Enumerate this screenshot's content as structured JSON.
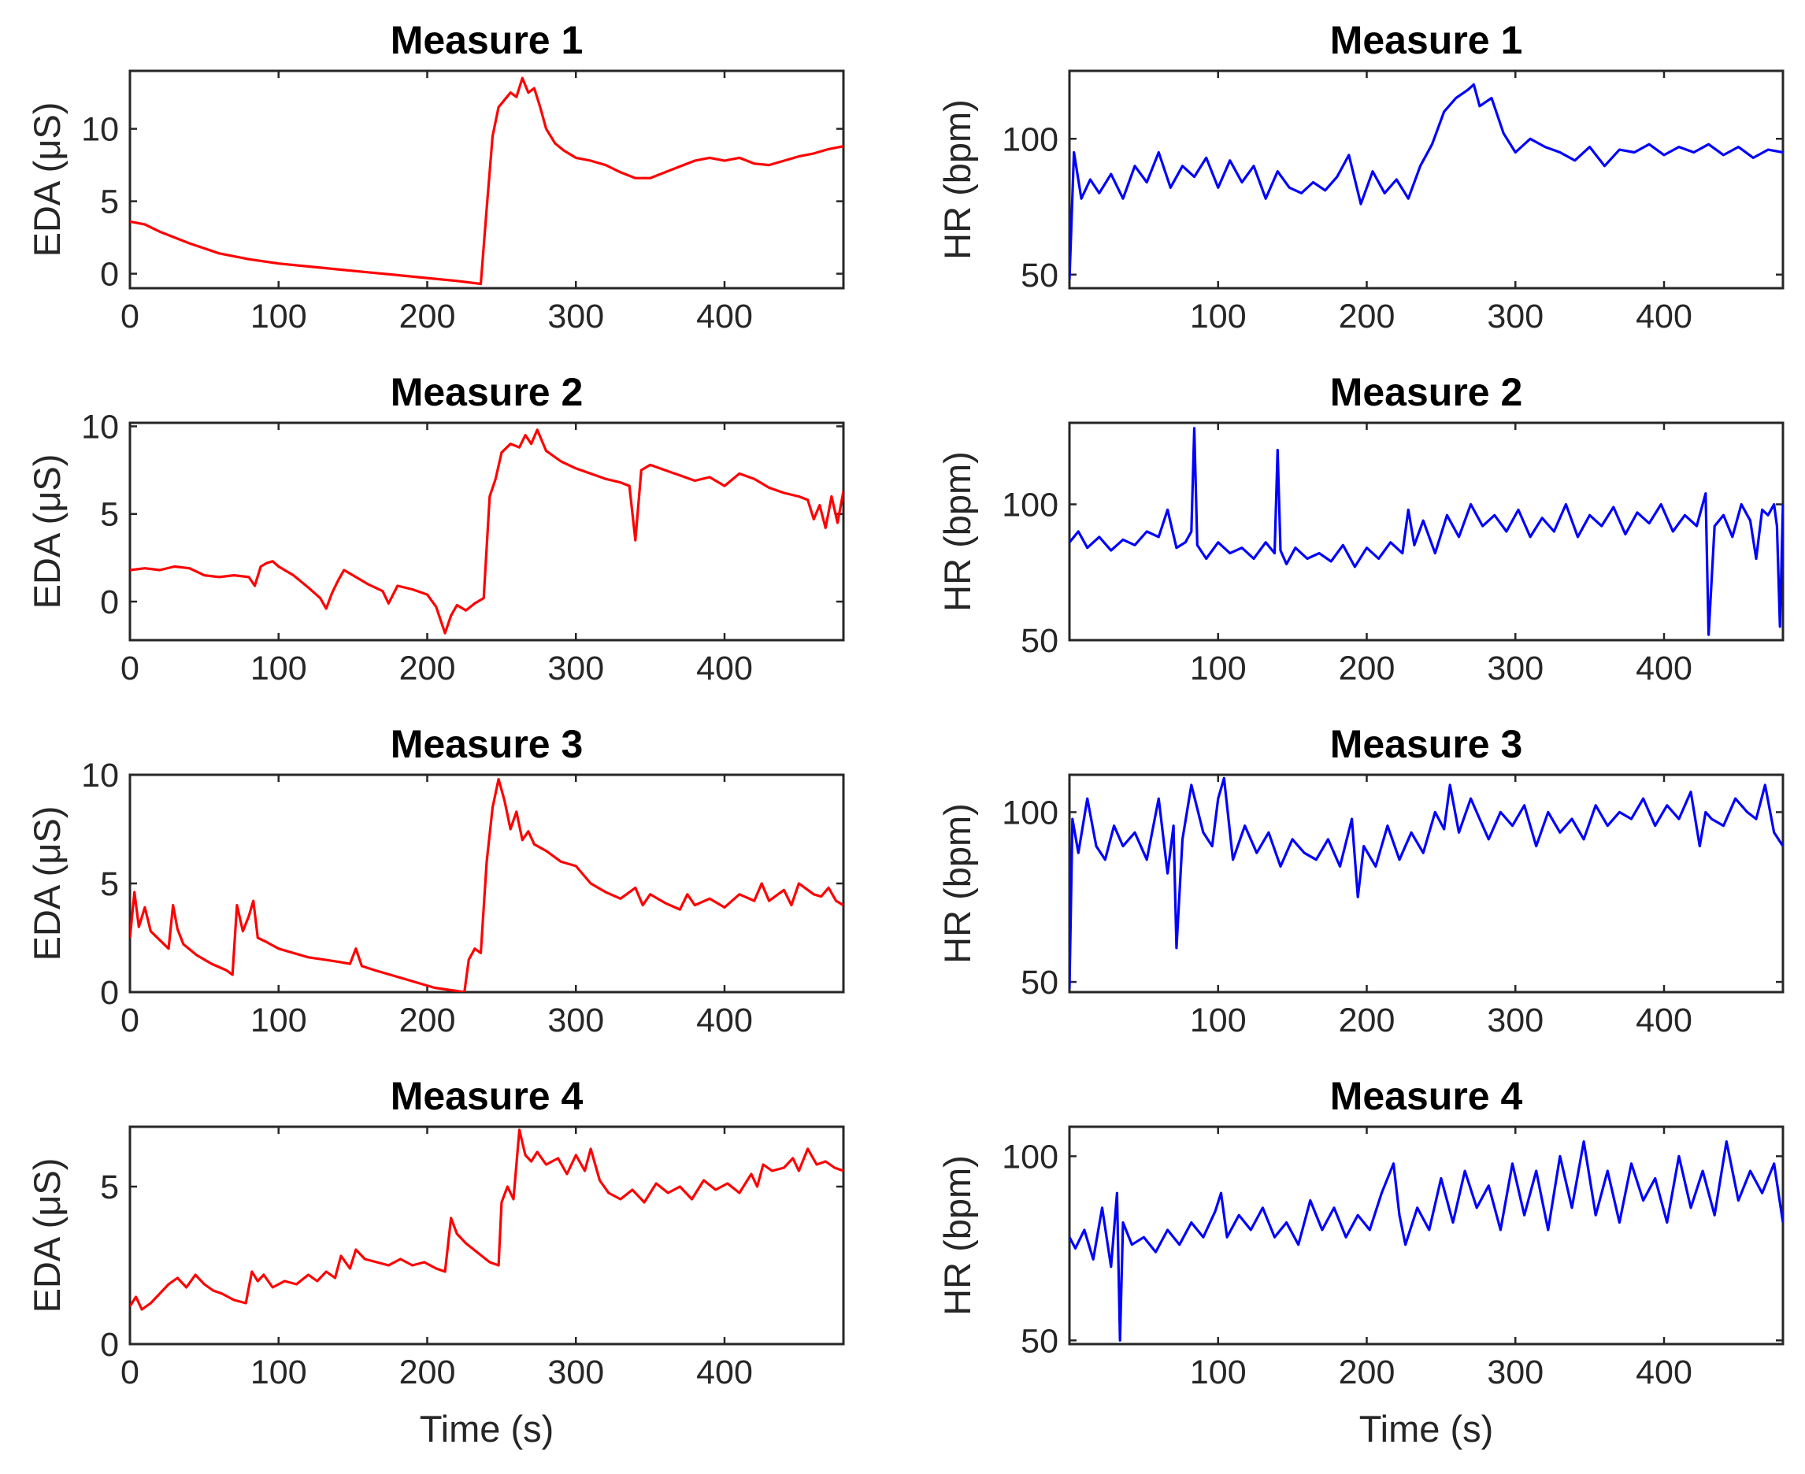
{
  "chart_data": [
    {
      "type": "line",
      "title": "Measure 1",
      "xlabel": "",
      "ylabel": "EDA (μS)",
      "xlim": [
        0,
        480
      ],
      "ylim": [
        -1,
        14
      ],
      "xticks": [
        0,
        100,
        200,
        300,
        400
      ],
      "yticks": [
        0,
        5,
        10
      ],
      "color": "#ff0000",
      "x": [
        0,
        10,
        20,
        40,
        60,
        80,
        100,
        120,
        140,
        160,
        180,
        200,
        220,
        236,
        240,
        244,
        248,
        252,
        256,
        260,
        264,
        268,
        272,
        276,
        280,
        286,
        292,
        300,
        310,
        320,
        330,
        340,
        350,
        360,
        370,
        380,
        390,
        400,
        410,
        420,
        430,
        440,
        450,
        460,
        470,
        480
      ],
      "y": [
        3.6,
        3.4,
        2.9,
        2.1,
        1.4,
        1.0,
        0.7,
        0.5,
        0.3,
        0.1,
        -0.1,
        -0.3,
        -0.5,
        -0.7,
        4.5,
        9.5,
        11.5,
        12,
        12.5,
        12.2,
        13.5,
        12.5,
        12.8,
        11.5,
        10,
        9,
        8.5,
        8,
        7.8,
        7.5,
        7,
        6.6,
        6.6,
        7,
        7.4,
        7.8,
        8,
        7.8,
        8,
        7.6,
        7.5,
        7.8,
        8.1,
        8.3,
        8.6,
        8.8
      ]
    },
    {
      "type": "line",
      "title": "Measure 1",
      "xlabel": "",
      "ylabel": "HR (bpm)",
      "xlim": [
        0,
        480
      ],
      "ylim": [
        45,
        125
      ],
      "xticks": [
        100,
        200,
        300,
        400
      ],
      "yticks": [
        50,
        100
      ],
      "color": "#0000ff",
      "x": [
        0,
        3,
        8,
        14,
        20,
        28,
        36,
        44,
        52,
        60,
        68,
        76,
        84,
        92,
        100,
        108,
        116,
        124,
        132,
        140,
        148,
        156,
        164,
        172,
        180,
        188,
        196,
        204,
        212,
        220,
        228,
        236,
        244,
        252,
        260,
        268,
        272,
        276,
        284,
        292,
        300,
        310,
        320,
        330,
        340,
        350,
        360,
        370,
        380,
        390,
        400,
        410,
        420,
        430,
        440,
        450,
        460,
        470,
        480
      ],
      "y": [
        48,
        95,
        78,
        85,
        80,
        87,
        78,
        90,
        84,
        95,
        82,
        90,
        86,
        93,
        82,
        92,
        84,
        90,
        78,
        88,
        82,
        80,
        84,
        81,
        86,
        94,
        76,
        88,
        80,
        85,
        78,
        90,
        98,
        110,
        115,
        118,
        120,
        112,
        115,
        102,
        95,
        100,
        97,
        95,
        92,
        97,
        90,
        96,
        95,
        98,
        94,
        97,
        95,
        98,
        94,
        97,
        93,
        96,
        95
      ]
    },
    {
      "type": "line",
      "title": "Measure 2",
      "xlabel": "",
      "ylabel": "EDA (μS)",
      "xlim": [
        0,
        480
      ],
      "ylim": [
        -2.2,
        10.2
      ],
      "xticks": [
        0,
        100,
        200,
        300,
        400
      ],
      "yticks": [
        0,
        5,
        10
      ],
      "color": "#ff0000",
      "x": [
        0,
        10,
        20,
        30,
        40,
        50,
        60,
        70,
        80,
        84,
        88,
        92,
        96,
        100,
        110,
        120,
        128,
        132,
        136,
        140,
        144,
        150,
        160,
        170,
        174,
        180,
        190,
        200,
        206,
        212,
        216,
        220,
        226,
        232,
        238,
        242,
        246,
        250,
        256,
        262,
        266,
        270,
        274,
        280,
        290,
        300,
        310,
        320,
        330,
        336,
        340,
        344,
        350,
        360,
        370,
        380,
        390,
        400,
        410,
        420,
        430,
        440,
        450,
        456,
        460,
        464,
        468,
        472,
        476,
        480
      ],
      "y": [
        1.8,
        1.9,
        1.8,
        2.0,
        1.9,
        1.5,
        1.4,
        1.5,
        1.4,
        0.9,
        2.0,
        2.2,
        2.3,
        2.0,
        1.5,
        0.8,
        0.2,
        -0.4,
        0.5,
        1.2,
        1.8,
        1.5,
        1.0,
        0.6,
        -0.1,
        0.9,
        0.7,
        0.4,
        -0.3,
        -1.8,
        -0.8,
        -0.2,
        -0.5,
        -0.1,
        0.2,
        6.0,
        7.0,
        8.5,
        9.0,
        8.8,
        9.5,
        9.0,
        9.8,
        8.6,
        8.0,
        7.6,
        7.3,
        7.0,
        6.8,
        6.6,
        3.5,
        7.5,
        7.8,
        7.5,
        7.2,
        6.9,
        7.1,
        6.6,
        7.3,
        7.0,
        6.5,
        6.2,
        6.0,
        5.8,
        4.7,
        5.5,
        4.2,
        6.0,
        4.5,
        6.3
      ]
    },
    {
      "type": "line",
      "title": "Measure 2",
      "xlabel": "",
      "ylabel": "HR (bpm)",
      "xlim": [
        0,
        480
      ],
      "ylim": [
        50,
        130
      ],
      "xticks": [
        100,
        200,
        300,
        400
      ],
      "yticks": [
        50,
        100
      ],
      "color": "#0000ff",
      "x": [
        0,
        6,
        12,
        20,
        28,
        36,
        44,
        52,
        60,
        66,
        72,
        78,
        82,
        84,
        86,
        92,
        100,
        108,
        116,
        124,
        132,
        138,
        140,
        142,
        146,
        152,
        160,
        168,
        176,
        184,
        192,
        200,
        208,
        216,
        224,
        228,
        232,
        238,
        246,
        254,
        262,
        270,
        278,
        286,
        294,
        302,
        310,
        318,
        326,
        334,
        342,
        350,
        358,
        366,
        374,
        382,
        390,
        398,
        406,
        414,
        422,
        428,
        430,
        434,
        440,
        446,
        452,
        458,
        462,
        466,
        470,
        474,
        476,
        478,
        480
      ],
      "y": [
        86,
        90,
        84,
        88,
        83,
        87,
        85,
        90,
        88,
        98,
        84,
        86,
        90,
        128,
        85,
        80,
        86,
        82,
        84,
        80,
        86,
        82,
        120,
        83,
        78,
        84,
        80,
        82,
        79,
        85,
        77,
        84,
        80,
        86,
        82,
        98,
        85,
        94,
        82,
        96,
        88,
        100,
        92,
        96,
        90,
        98,
        88,
        95,
        90,
        100,
        88,
        96,
        92,
        99,
        89,
        97,
        93,
        100,
        90,
        96,
        92,
        104,
        52,
        92,
        96,
        88,
        100,
        94,
        80,
        98,
        96,
        100,
        92,
        55,
        100
      ]
    },
    {
      "type": "line",
      "title": "Measure 3",
      "xlabel": "",
      "ylabel": "EDA (μS)",
      "xlim": [
        0,
        480
      ],
      "ylim": [
        0,
        10
      ],
      "xticks": [
        0,
        100,
        200,
        300,
        400
      ],
      "yticks": [
        0,
        5,
        10
      ],
      "color": "#ff0000",
      "x": [
        0,
        3,
        6,
        10,
        14,
        20,
        26,
        29,
        32,
        36,
        45,
        55,
        65,
        69,
        72,
        76,
        80,
        83,
        86,
        92,
        100,
        110,
        120,
        130,
        140,
        148,
        152,
        156,
        165,
        175,
        185,
        195,
        205,
        215,
        225,
        228,
        232,
        236,
        240,
        244,
        248,
        252,
        256,
        260,
        264,
        268,
        272,
        280,
        290,
        300,
        310,
        320,
        330,
        340,
        345,
        350,
        360,
        370,
        375,
        380,
        390,
        400,
        410,
        420,
        425,
        430,
        440,
        445,
        450,
        460,
        465,
        470,
        475,
        480
      ],
      "y": [
        2.5,
        4.6,
        3.0,
        3.9,
        2.8,
        2.4,
        2.0,
        4.0,
        2.9,
        2.2,
        1.7,
        1.3,
        1.0,
        0.8,
        4.0,
        2.8,
        3.5,
        4.2,
        2.5,
        2.3,
        2.0,
        1.8,
        1.6,
        1.5,
        1.4,
        1.3,
        2.0,
        1.2,
        1.0,
        0.8,
        0.6,
        0.4,
        0.2,
        0.1,
        0.0,
        1.5,
        2.0,
        1.8,
        6.0,
        8.5,
        9.8,
        8.8,
        7.5,
        8.3,
        7.0,
        7.4,
        6.8,
        6.5,
        6.0,
        5.8,
        5.0,
        4.6,
        4.3,
        4.8,
        4.0,
        4.5,
        4.1,
        3.8,
        4.5,
        4.0,
        4.3,
        3.9,
        4.5,
        4.2,
        5.0,
        4.2,
        4.7,
        4.0,
        5.0,
        4.5,
        4.4,
        4.8,
        4.2,
        4.0
      ]
    },
    {
      "type": "line",
      "title": "Measure 3",
      "xlabel": "",
      "ylabel": "HR (bpm)",
      "xlim": [
        0,
        480
      ],
      "ylim": [
        47,
        111
      ],
      "xticks": [
        100,
        200,
        300,
        400
      ],
      "yticks": [
        50,
        100
      ],
      "color": "#0000ff",
      "x": [
        0,
        2,
        6,
        12,
        18,
        24,
        30,
        36,
        44,
        52,
        60,
        66,
        70,
        72,
        76,
        82,
        90,
        96,
        100,
        104,
        110,
        118,
        126,
        134,
        142,
        150,
        158,
        166,
        174,
        182,
        190,
        194,
        198,
        206,
        214,
        222,
        230,
        238,
        246,
        252,
        256,
        262,
        270,
        276,
        282,
        290,
        298,
        306,
        314,
        322,
        330,
        338,
        346,
        354,
        362,
        370,
        378,
        386,
        394,
        402,
        410,
        418,
        424,
        428,
        432,
        440,
        448,
        456,
        462,
        468,
        474,
        480
      ],
      "y": [
        48,
        98,
        88,
        104,
        90,
        86,
        96,
        90,
        94,
        86,
        104,
        82,
        96,
        60,
        92,
        108,
        94,
        90,
        104,
        110,
        86,
        96,
        88,
        94,
        84,
        92,
        88,
        86,
        92,
        84,
        98,
        75,
        90,
        84,
        96,
        86,
        94,
        88,
        100,
        95,
        108,
        94,
        104,
        98,
        92,
        100,
        96,
        102,
        90,
        100,
        94,
        98,
        92,
        102,
        96,
        100,
        98,
        104,
        96,
        102,
        98,
        106,
        90,
        100,
        98,
        96,
        104,
        100,
        98,
        108,
        94,
        90
      ]
    },
    {
      "type": "line",
      "title": "Measure 4",
      "xlabel": "Time (s)",
      "ylabel": "EDA (μS)",
      "xlim": [
        0,
        480
      ],
      "ylim": [
        0,
        6.9
      ],
      "xticks": [
        0,
        100,
        200,
        300,
        400
      ],
      "yticks": [
        0,
        5
      ],
      "color": "#ff0000",
      "x": [
        0,
        4,
        8,
        14,
        20,
        26,
        32,
        38,
        44,
        50,
        56,
        62,
        70,
        78,
        82,
        86,
        90,
        96,
        104,
        112,
        120,
        126,
        132,
        138,
        142,
        148,
        152,
        158,
        166,
        174,
        182,
        190,
        198,
        206,
        212,
        216,
        220,
        226,
        234,
        242,
        248,
        250,
        254,
        258,
        262,
        266,
        270,
        274,
        280,
        288,
        294,
        300,
        306,
        310,
        316,
        322,
        330,
        338,
        346,
        354,
        362,
        370,
        378,
        386,
        394,
        402,
        410,
        418,
        422,
        426,
        432,
        440,
        446,
        450,
        456,
        462,
        468,
        474,
        480
      ],
      "y": [
        1.2,
        1.5,
        1.1,
        1.3,
        1.6,
        1.9,
        2.1,
        1.8,
        2.2,
        1.9,
        1.7,
        1.6,
        1.4,
        1.3,
        2.3,
        2.0,
        2.2,
        1.8,
        2.0,
        1.9,
        2.2,
        2.0,
        2.3,
        2.1,
        2.8,
        2.4,
        3.0,
        2.7,
        2.6,
        2.5,
        2.7,
        2.5,
        2.6,
        2.4,
        2.3,
        4.0,
        3.5,
        3.2,
        2.9,
        2.6,
        2.5,
        4.5,
        5.0,
        4.6,
        6.8,
        6.0,
        5.8,
        6.1,
        5.7,
        5.9,
        5.4,
        6.0,
        5.5,
        6.2,
        5.2,
        4.8,
        4.6,
        4.9,
        4.5,
        5.1,
        4.8,
        5.0,
        4.6,
        5.2,
        4.9,
        5.1,
        4.8,
        5.4,
        5.0,
        5.7,
        5.5,
        5.6,
        5.9,
        5.5,
        6.2,
        5.7,
        5.8,
        5.6,
        5.5
      ]
    },
    {
      "type": "line",
      "title": "Measure 4",
      "xlabel": "Time (s)",
      "ylabel": "HR (bpm)",
      "xlim": [
        0,
        480
      ],
      "ylim": [
        49,
        108
      ],
      "xticks": [
        100,
        200,
        300,
        400
      ],
      "yticks": [
        50,
        100
      ],
      "color": "#0000ff",
      "x": [
        0,
        4,
        10,
        16,
        22,
        28,
        32,
        34,
        36,
        42,
        50,
        58,
        66,
        74,
        82,
        90,
        98,
        102,
        106,
        114,
        122,
        130,
        138,
        146,
        154,
        162,
        170,
        178,
        186,
        194,
        202,
        210,
        218,
        222,
        226,
        234,
        242,
        250,
        258,
        266,
        274,
        282,
        290,
        298,
        306,
        314,
        322,
        330,
        338,
        346,
        354,
        362,
        370,
        378,
        386,
        394,
        402,
        410,
        418,
        426,
        434,
        442,
        450,
        458,
        466,
        474,
        480
      ],
      "y": [
        78,
        75,
        80,
        72,
        86,
        70,
        90,
        50,
        82,
        76,
        78,
        74,
        80,
        76,
        82,
        78,
        85,
        90,
        78,
        84,
        80,
        86,
        78,
        82,
        76,
        88,
        80,
        86,
        78,
        84,
        80,
        90,
        98,
        84,
        76,
        86,
        80,
        94,
        82,
        96,
        86,
        92,
        80,
        98,
        84,
        96,
        80,
        100,
        86,
        104,
        84,
        96,
        82,
        98,
        88,
        94,
        82,
        100,
        86,
        96,
        84,
        104,
        88,
        96,
        90,
        98,
        82
      ]
    }
  ]
}
